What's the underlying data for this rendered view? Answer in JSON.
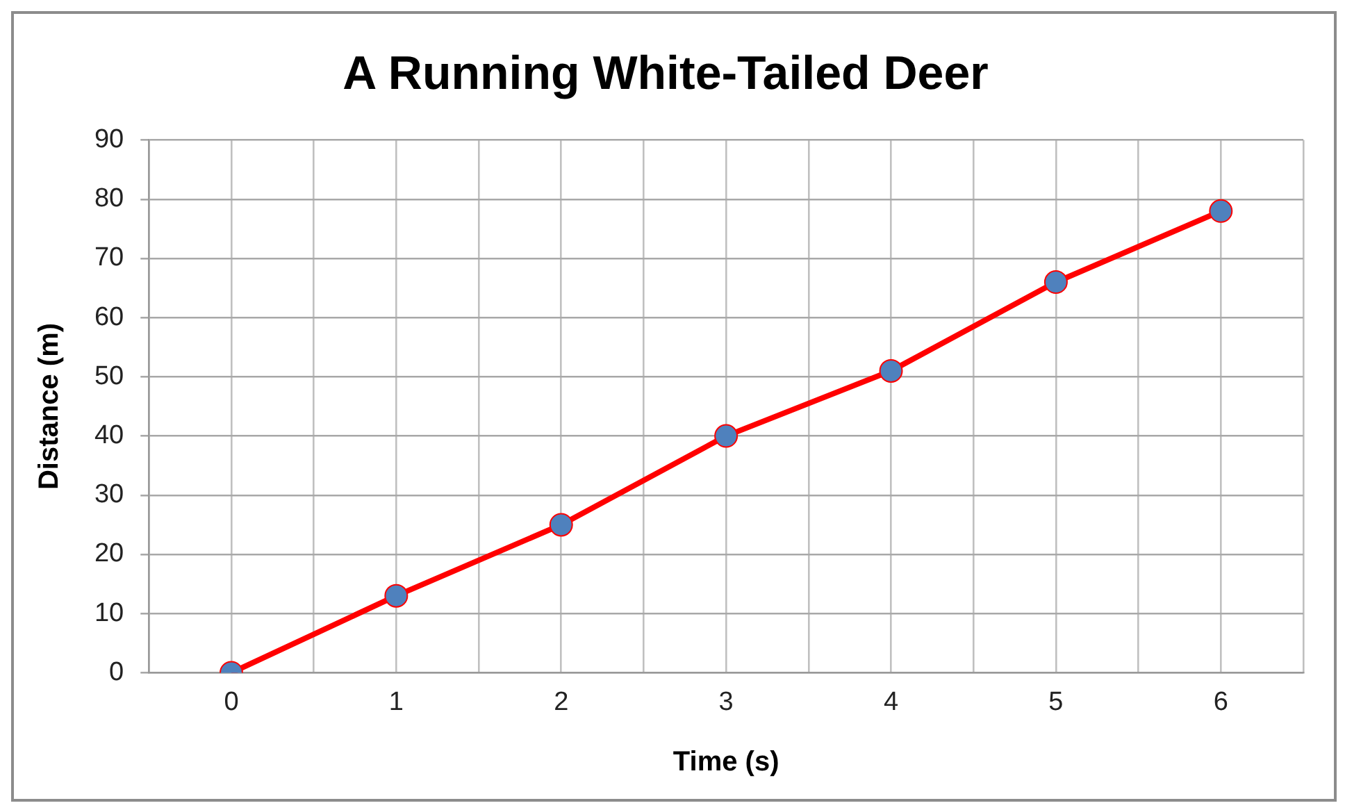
{
  "chart_data": {
    "type": "line",
    "title": "A Running White-Tailed Deer",
    "xlabel": "Time (s)",
    "ylabel": "Distance (m)",
    "x": [
      0,
      1,
      2,
      3,
      4,
      5,
      6
    ],
    "series": [
      {
        "color": "#ff0000",
        "colors": [
          "#4f81bd",
          "#4f81bd",
          "#4f81bd",
          "#4f81bd",
          "#4f81bd",
          "#4f81bd",
          "#4f81bd"
        ],
        "values": [
          0,
          13,
          25,
          40,
          51,
          66,
          78
        ]
      }
    ],
    "xlim": [
      -0.5,
      6.5
    ],
    "xticks": [
      {
        "value": -0.5,
        "label": null
      },
      0,
      {
        "value": 0.5,
        "label": null
      },
      1,
      {
        "value": 1.5,
        "label": null
      },
      2,
      {
        "value": 2.5,
        "label": null
      },
      3,
      {
        "value": 3.5,
        "label": null
      },
      4,
      {
        "value": 4.5,
        "label": null
      },
      5,
      {
        "value": 5.5,
        "label": null
      },
      6,
      {
        "value": 6.5,
        "label": null
      }
    ],
    "ylim": [
      0,
      90
    ],
    "yticks": [
      0,
      10,
      20,
      30,
      40,
      50,
      60,
      70,
      80,
      90
    ],
    "grid": true,
    "legend": false,
    "marker": "circle",
    "line_style": "solid"
  }
}
